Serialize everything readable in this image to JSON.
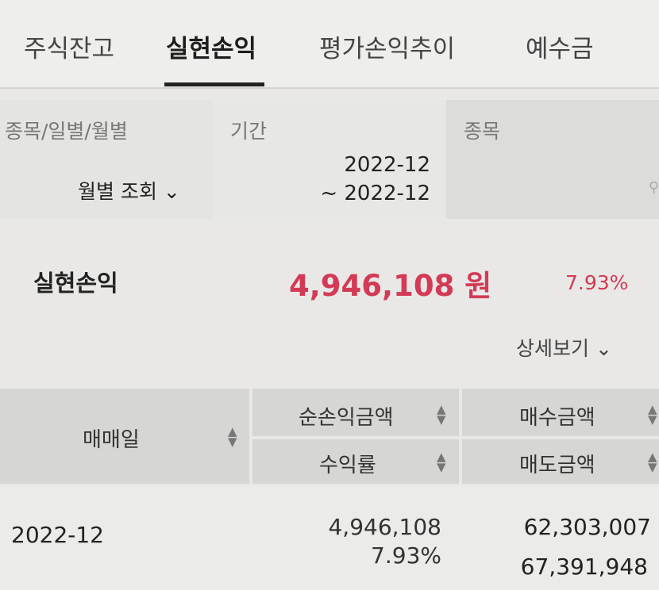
{
  "tabs": [
    {
      "label": "주식잔고"
    },
    {
      "label": "실현손익",
      "active": true
    },
    {
      "label": "평가손익추이"
    },
    {
      "label": "예수금"
    }
  ],
  "filter": {
    "type_label": "종목/일별/월별",
    "type_value": "월별 조회",
    "period_label": "기간",
    "period_from": "2022-12",
    "period_to": "~ 2022-12",
    "stock_label": "종목",
    "stock_value": ""
  },
  "summary": {
    "label": "실현손익",
    "amount": "4,946,108 원",
    "rate": "7.93%",
    "detail_label": "상세보기"
  },
  "table": {
    "headers": {
      "date": "매매일",
      "net_profit": "순손익금액",
      "rate": "수익률",
      "buy": "매수금액",
      "sell": "매도금액"
    },
    "rows": [
      {
        "date": "2022-12",
        "net_profit": "4,946,108",
        "rate": "7.93%",
        "buy": "62,303,007",
        "sell": "67,391,948"
      }
    ]
  },
  "colors": {
    "accent": "#d33a55"
  }
}
